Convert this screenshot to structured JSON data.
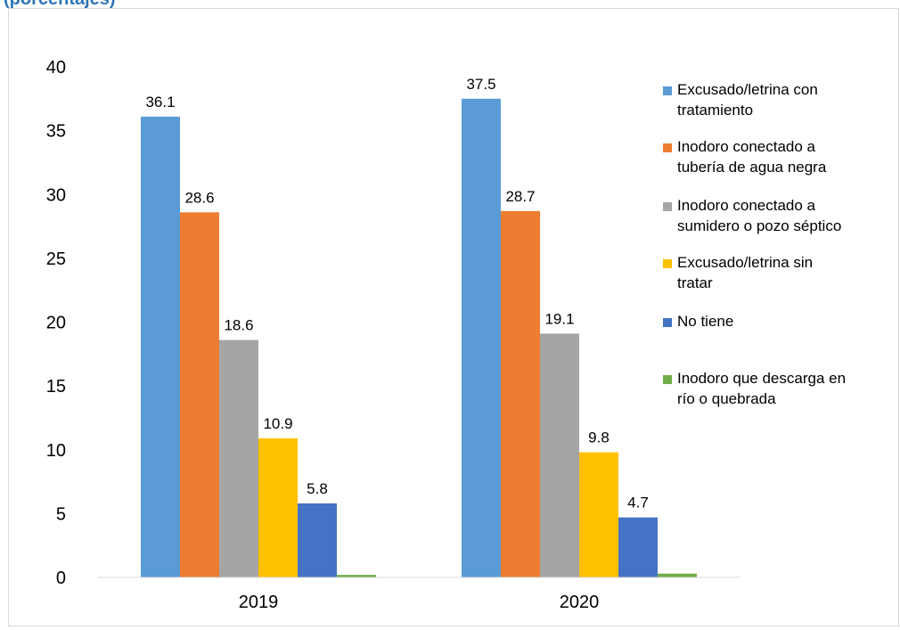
{
  "header": {
    "clipped_text": "(porcentajes)"
  },
  "colors": {
    "axis": "#d9d9d9",
    "header": "#2e75b6"
  },
  "chart_data": {
    "type": "bar",
    "title": "",
    "xlabel": "",
    "ylabel": "",
    "ylim": [
      0,
      40
    ],
    "yticks": [
      "0",
      "5",
      "10",
      "15",
      "20",
      "25",
      "30",
      "35",
      "40"
    ],
    "grid": false,
    "legend_position": "right",
    "categories": [
      "2019",
      "2020"
    ],
    "series": [
      {
        "name": "Excusado/letrina con tratamiento",
        "legend_lines": [
          "Excusado/letrina con",
          "tratamiento"
        ],
        "color": "#5b9bd5",
        "values": [
          36.1,
          37.5
        ],
        "labels": [
          "36.1",
          "37.5"
        ]
      },
      {
        "name": "Inodoro conectado a tubería de agua negra",
        "legend_lines": [
          "Inodoro conectado a",
          "tubería de agua negra"
        ],
        "color": "#ed7d31",
        "values": [
          28.6,
          28.7
        ],
        "labels": [
          "28.6",
          "28.7"
        ]
      },
      {
        "name": "Inodoro conectado a sumidero o pozo séptico",
        "legend_lines": [
          "Inodoro conectado a",
          "sumidero o pozo séptico"
        ],
        "color": "#a5a5a5",
        "values": [
          18.6,
          19.1
        ],
        "labels": [
          "18.6",
          "19.1"
        ]
      },
      {
        "name": "Excusado/letrina sin tratar",
        "legend_lines": [
          "Excusado/letrina sin",
          "tratar"
        ],
        "color": "#ffc000",
        "values": [
          10.9,
          9.8
        ],
        "labels": [
          "10.9",
          "9.8"
        ]
      },
      {
        "name": "No tiene",
        "legend_lines": [
          "No tiene"
        ],
        "color": "#4472c4",
        "values": [
          5.8,
          4.7
        ],
        "labels": [
          "5.8",
          "4.7"
        ]
      },
      {
        "name": "Inodoro que descarga en río o quebrada",
        "legend_lines": [
          "Inodoro que descarga en",
          "río o quebrada"
        ],
        "color": "#70ad47",
        "values": [
          0.2,
          0.3
        ],
        "labels": [
          "",
          ""
        ]
      }
    ]
  }
}
